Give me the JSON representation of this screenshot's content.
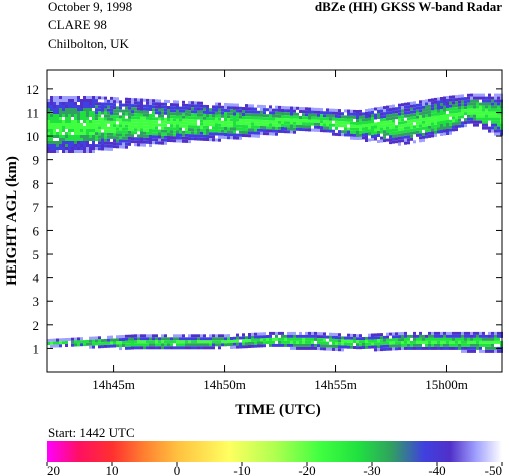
{
  "header": {
    "date": "October  9, 1998",
    "campaign": "CLARE 98",
    "site": "Chilbolton, UK",
    "product": "dBZe (HH)   GKSS  W-band Radar"
  },
  "footer": {
    "start": "Start:  1442 UTC"
  },
  "chart_data": {
    "type": "heatmap",
    "title": "dBZe (HH)   GKSS  W-band Radar",
    "xlabel": "TIME (UTC)",
    "ylabel": "HEIGHT AGL (km)",
    "x_ticks": [
      "14h45m",
      "14h50m",
      "14h55m",
      "15h00m"
    ],
    "x_tick_minutes_after_1442": [
      3,
      8,
      13,
      18
    ],
    "xlim_minutes_after_1442": [
      0,
      20.5
    ],
    "y_ticks": [
      1,
      2,
      3,
      4,
      5,
      6,
      7,
      8,
      9,
      10,
      11,
      12
    ],
    "ylim": [
      0,
      12.8
    ],
    "colorbar": {
      "ticks": [
        20,
        10,
        0,
        -10,
        -20,
        -30,
        -40,
        -50
      ],
      "range": [
        20,
        -50
      ],
      "stops": [
        {
          "value": 20,
          "color": "#ff00ff"
        },
        {
          "value": 15,
          "color": "#ff1060"
        },
        {
          "value": 10,
          "color": "#ff3030"
        },
        {
          "value": 5,
          "color": "#ff8030"
        },
        {
          "value": 0,
          "color": "#ffc040"
        },
        {
          "value": -8,
          "color": "#ffff60"
        },
        {
          "value": -15,
          "color": "#b0ff50"
        },
        {
          "value": -22,
          "color": "#40ff40"
        },
        {
          "value": -28,
          "color": "#20e040"
        },
        {
          "value": -33,
          "color": "#30a060"
        },
        {
          "value": -38,
          "color": "#4040e0"
        },
        {
          "value": -42,
          "color": "#5030c8"
        },
        {
          "value": -46,
          "color": "#a0a0ff"
        },
        {
          "value": -50,
          "color": "#ffffff"
        }
      ]
    },
    "layers": [
      {
        "name": "upper cloud",
        "x": [
          0,
          2,
          4,
          6,
          8,
          10,
          12,
          14,
          16,
          18,
          19,
          20.5
        ],
        "top_km": [
          11.7,
          11.7,
          11.6,
          11.5,
          11.4,
          11.3,
          11.2,
          11.1,
          11.4,
          11.7,
          11.8,
          11.8
        ],
        "base_km": [
          9.3,
          9.4,
          9.6,
          9.8,
          9.9,
          10.1,
          10.3,
          9.9,
          9.7,
          10.1,
          10.6,
          10.0
        ],
        "core_dbz": -26
      },
      {
        "name": "lower cloud",
        "x": [
          0,
          2,
          4,
          6,
          8,
          10,
          12,
          14,
          16,
          18,
          20.5
        ],
        "top_km": [
          1.4,
          1.5,
          1.6,
          1.6,
          1.6,
          1.7,
          1.7,
          1.6,
          1.7,
          1.7,
          1.7
        ],
        "base_km": [
          1.15,
          1.1,
          1.0,
          1.0,
          1.1,
          1.1,
          1.0,
          1.0,
          1.0,
          0.95,
          0.9
        ],
        "core_dbz": -27
      }
    ],
    "grid": false,
    "legend": "colorbar bottom"
  },
  "colors": {
    "strong": "#20e040",
    "medium": "#30a060",
    "weak": "#4040e0",
    "faint": "#a0a0ff"
  }
}
